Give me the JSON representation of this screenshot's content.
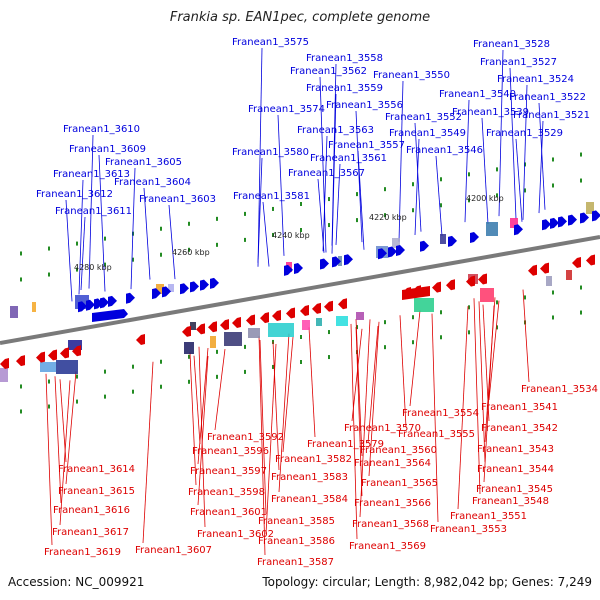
{
  "title": "Frankia sp. EAN1pec, complete genome",
  "footer": {
    "accession": "Accession: NC_009921",
    "summary": "Topology: circular; Length: 8,982,042 bp; Genes: 7,249"
  },
  "colors": {
    "forward": "#0000dd",
    "reverse": "#dd0000",
    "backbone": "#777777",
    "tick": "#228b22"
  },
  "scale_labels": [
    "4200 kbp",
    "4220 kbp",
    "4240 kbp",
    "4260 kbp",
    "4280 kbp"
  ],
  "top_genes": [
    "Franean1_3528",
    "Franean1_3527",
    "Franean1_3524",
    "Franean1_3522",
    "Franean1_3521",
    "Franean1_3529",
    "Franean1_3540",
    "Franean1_3539",
    "Franean1_3550",
    "Franean1_3552",
    "Franean1_3549",
    "Franean1_3546",
    "Franean1_3558",
    "Franean1_3562",
    "Franean1_3559",
    "Franean1_3556",
    "Franean1_3563",
    "Franean1_3557",
    "Franean1_3561",
    "Franean1_3567",
    "Franean1_3575",
    "Franean1_3574",
    "Franean1_3580",
    "Franean1_3581",
    "Franean1_3610",
    "Franean1_3609",
    "Franean1_3605",
    "Franean1_3604",
    "Franean1_3613",
    "Franean1_3612",
    "Franean1_3611",
    "Franean1_3603"
  ],
  "bottom_genes": [
    "Franean1_3534",
    "Franean1_3541",
    "Franean1_3542",
    "Franean1_3543",
    "Franean1_3544",
    "Franean1_3545",
    "Franean1_3548",
    "Franean1_3551",
    "Franean1_3553",
    "Franean1_3554",
    "Franean1_3555",
    "Franean1_3560",
    "Franean1_3564",
    "Franean1_3565",
    "Franean1_3566",
    "Franean1_3568",
    "Franean1_3569",
    "Franean1_3570",
    "Franean1_3579",
    "Franean1_3582",
    "Franean1_3583",
    "Franean1_3584",
    "Franean1_3585",
    "Franean1_3586",
    "Franean1_3587",
    "Franean1_3592",
    "Franean1_3596",
    "Franean1_3597",
    "Franean1_3598",
    "Franean1_3601",
    "Franean1_3602",
    "Franean1_3607",
    "Franean1_3614",
    "Franean1_3615",
    "Franean1_3616",
    "Franean1_3617",
    "Franean1_3619"
  ]
}
